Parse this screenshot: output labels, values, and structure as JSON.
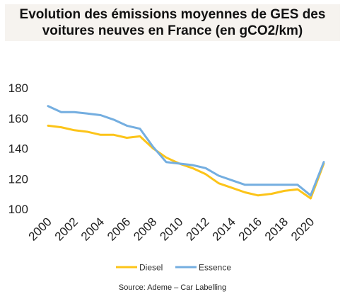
{
  "title": {
    "line1": "Evolution des émissions moyennes de GES des",
    "line2": "voitures neuves en France (en gCO2/km)"
  },
  "source": "Source: Ademe – Car Labelling",
  "chart_data": {
    "type": "line",
    "title": "Evolution des émissions moyennes de GES des voitures neuves en France (en gCO2/km)",
    "xlabel": "",
    "ylabel": "",
    "x": [
      2000,
      2001,
      2002,
      2003,
      2004,
      2005,
      2006,
      2007,
      2008,
      2009,
      2010,
      2011,
      2012,
      2013,
      2014,
      2015,
      2016,
      2017,
      2018,
      2019,
      2020,
      2021
    ],
    "x_ticks": [
      "2000",
      "2002",
      "2004",
      "2006",
      "2008",
      "2010",
      "2012",
      "2014",
      "2016",
      "2018",
      "2020"
    ],
    "y_ticks": [
      "100",
      "120",
      "140",
      "160",
      "180"
    ],
    "ylim": [
      100,
      180
    ],
    "xlim": [
      2000,
      2021
    ],
    "grid": false,
    "legend_position": "bottom",
    "series": [
      {
        "name": "Diesel",
        "color": "#fcc419",
        "values": [
          155,
          154,
          152,
          151,
          149,
          149,
          147,
          148,
          140,
          134,
          130,
          127,
          123,
          117,
          114,
          111,
          109,
          110,
          112,
          113,
          107,
          130
        ]
      },
      {
        "name": "Essence",
        "color": "#74aee0",
        "values": [
          168,
          164,
          164,
          163,
          162,
          159,
          155,
          153,
          141,
          131,
          130,
          129,
          127,
          122,
          119,
          116,
          116,
          116,
          116,
          116,
          109,
          131
        ]
      }
    ]
  }
}
